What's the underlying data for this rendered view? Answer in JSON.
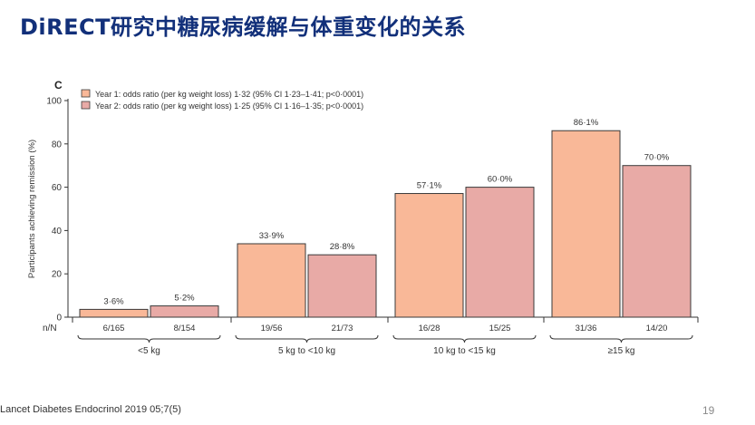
{
  "slide": {
    "title": "DiRECT研究中糖尿病缓解与体重变化的关系",
    "citation": "Lancet Diabetes Endocrinol 2019 05;7(5)",
    "page_number": "19"
  },
  "chart_data": {
    "type": "bar",
    "panel_label": "C",
    "ylabel": "Participants achieving remission (%)",
    "xlabel": "",
    "ylim": [
      0,
      100
    ],
    "yticks": [
      0,
      20,
      40,
      60,
      80,
      100
    ],
    "grid": false,
    "legend_position": "top-left",
    "n_label": "n/N",
    "categories": [
      "<5 kg",
      "5 kg to <10 kg",
      "10 kg to <15 kg",
      "≥15 kg"
    ],
    "series": [
      {
        "name": "Year 1: odds ratio (per kg weight loss) 1·32 (95% CI 1·23–1·41; p<0·0001)",
        "color": "#f9b898",
        "values": [
          3.6,
          33.9,
          57.1,
          86.1
        ],
        "value_labels": [
          "3·6%",
          "33·9%",
          "57·1%",
          "86·1%"
        ],
        "n_labels": [
          "6/165",
          "19/56",
          "16/28",
          "31/36"
        ]
      },
      {
        "name": "Year 2: odds ratio (per kg weight loss) 1·25 (95% CI 1·16–1·35; p<0·0001)",
        "color": "#e8aaa6",
        "values": [
          5.2,
          28.8,
          60.0,
          70.0
        ],
        "value_labels": [
          "5·2%",
          "28·8%",
          "60·0%",
          "70·0%"
        ],
        "n_labels": [
          "8/154",
          "21/73",
          "15/25",
          "14/20"
        ]
      }
    ]
  }
}
